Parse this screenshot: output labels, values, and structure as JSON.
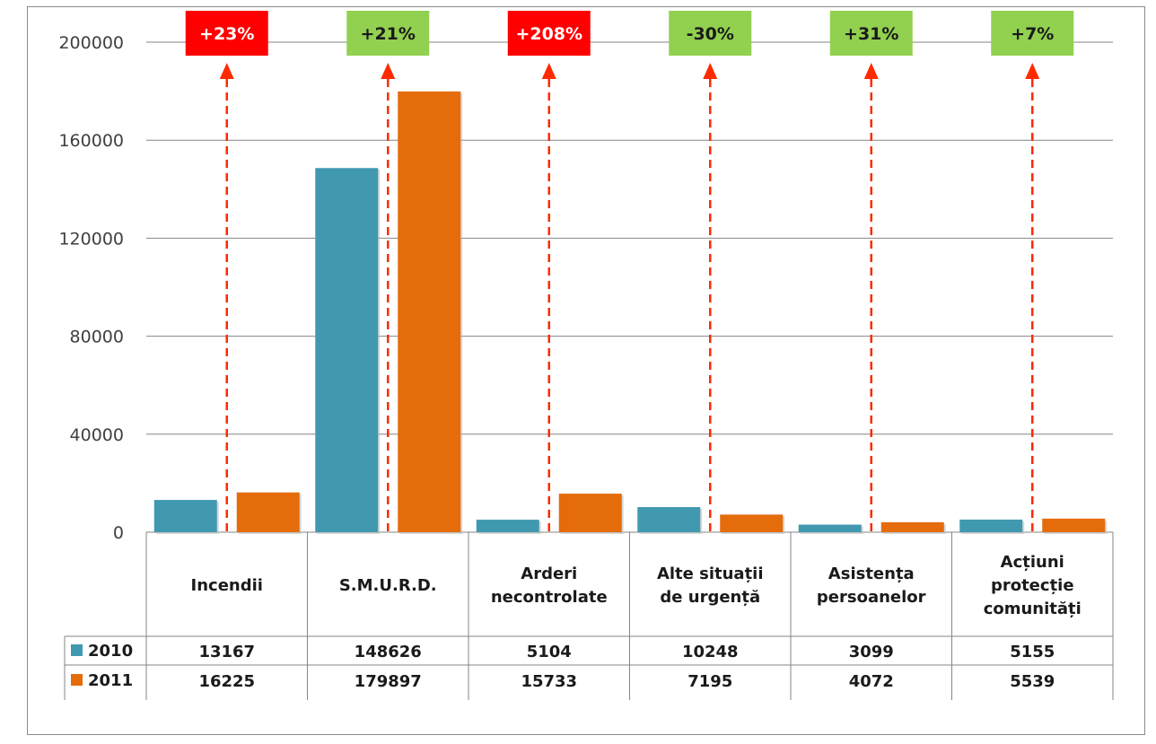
{
  "chart_data": {
    "type": "bar",
    "categories": [
      [
        "Incendii"
      ],
      [
        "S.M.U.R.D."
      ],
      [
        "Arderi",
        "necontrolate"
      ],
      [
        "Alte situații",
        "de urgență"
      ],
      [
        "Asistența",
        "persoanelor"
      ],
      [
        "Acțiuni",
        "protecție",
        "comunități"
      ]
    ],
    "series": [
      {
        "name": "2010",
        "color": "#4199b0",
        "values": [
          13167,
          148626,
          5104,
          10248,
          3099,
          5155
        ]
      },
      {
        "name": "2011",
        "color": "#e46c0a",
        "values": [
          16225,
          179897,
          15733,
          7195,
          4072,
          5539
        ]
      }
    ],
    "ylim": [
      0,
      200000
    ],
    "yticks": [
      0,
      40000,
      80000,
      120000,
      160000,
      200000
    ],
    "grid": true,
    "legend": "data-table",
    "change_labels": [
      {
        "text": "+23%",
        "color": "#ff0000"
      },
      {
        "text": "+21%",
        "color": "#92d050"
      },
      {
        "text": "+208%",
        "color": "#ff0000"
      },
      {
        "text": "-30%",
        "color": "#92d050"
      },
      {
        "text": "+31%",
        "color": "#92d050"
      },
      {
        "text": "+7%",
        "color": "#92d050"
      }
    ],
    "arrow_color": "#ff2a00"
  }
}
